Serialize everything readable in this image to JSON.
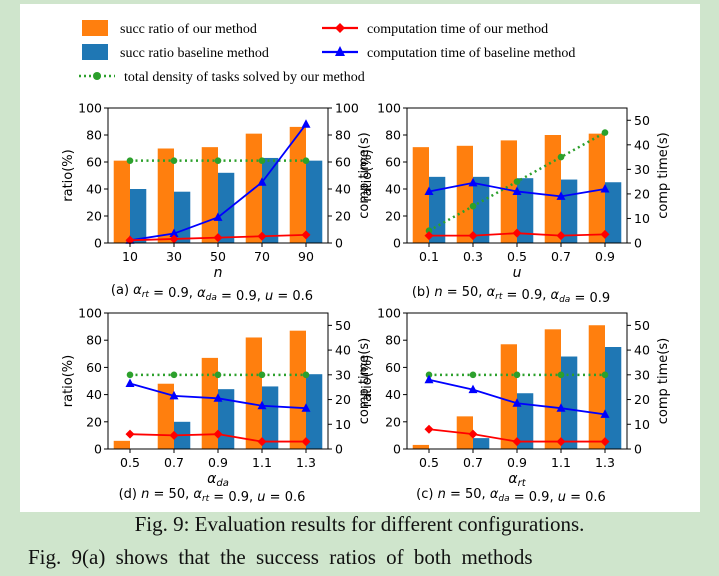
{
  "legend": {
    "entries": [
      {
        "label": "succ ratio of our method",
        "kind": "bar",
        "color": "#ff7f0e"
      },
      {
        "label": "succ ratio baseline method",
        "kind": "bar",
        "color": "#1f77b4"
      },
      {
        "label": "computation time of our method",
        "kind": "line",
        "marker": "diamond",
        "color": "#ff0000"
      },
      {
        "label": "computation time of baseline method",
        "kind": "line",
        "marker": "triangle",
        "color": "#0000ff"
      },
      {
        "label": "total density of tasks solved by our method",
        "kind": "dotted-line",
        "marker": "circle",
        "color": "#2ca02c"
      }
    ]
  },
  "chart_data": [
    {
      "type": "bar",
      "categories": [
        "10",
        "30",
        "50",
        "70",
        "90"
      ],
      "xlabel": "n",
      "ylabel": "ratio(%)",
      "y2label": "comp time(s)",
      "ylim": [
        0,
        100
      ],
      "y2lim": [
        0,
        100
      ],
      "y2ticks": [
        0,
        20,
        40,
        60,
        80,
        100
      ],
      "subcaption": "(a) α_rt = 0.9, α_da = 0.9, u = 0.6",
      "series": [
        {
          "name": "succ ratio of our method",
          "values": [
            61,
            70,
            71,
            81,
            86
          ]
        },
        {
          "name": "succ ratio baseline method",
          "values": [
            40,
            38,
            52,
            63,
            61
          ]
        },
        {
          "name": "computation time of our method",
          "axis": "right",
          "values": [
            2,
            3,
            4,
            5,
            6
          ]
        },
        {
          "name": "computation time of baseline method",
          "axis": "right",
          "values": [
            2,
            7,
            19,
            45,
            88
          ]
        },
        {
          "name": "total density of tasks solved by our method",
          "axis": "left",
          "values": [
            61,
            61,
            61,
            61,
            61
          ]
        }
      ]
    },
    {
      "type": "bar",
      "categories": [
        "0.1",
        "0.3",
        "0.5",
        "0.7",
        "0.9"
      ],
      "xlabel": "u",
      "ylabel": "ratio(%)",
      "y2label": "comp time(s)",
      "ylim": [
        0,
        100
      ],
      "y2lim": [
        0,
        55
      ],
      "y2ticks": [
        0,
        10,
        20,
        30,
        40,
        50
      ],
      "subcaption": "(b) n = 50, α_rt = 0.9, α_da = 0.9",
      "series": [
        {
          "name": "succ ratio of our method",
          "values": [
            71,
            72,
            76,
            80,
            81
          ]
        },
        {
          "name": "succ ratio baseline method",
          "values": [
            49,
            49,
            48,
            47,
            45
          ]
        },
        {
          "name": "computation time of our method",
          "axis": "right",
          "values": [
            3,
            3,
            4,
            3,
            3.5
          ]
        },
        {
          "name": "computation time of baseline method",
          "axis": "right",
          "values": [
            21,
            24.5,
            21,
            19,
            22
          ]
        },
        {
          "name": "total density of tasks solved by our method",
          "axis": "right",
          "values": [
            5,
            15,
            25,
            35,
            45
          ]
        }
      ]
    },
    {
      "type": "bar",
      "categories": [
        "0.5",
        "0.7",
        "0.9",
        "1.1",
        "1.3"
      ],
      "xlabel": "α_da",
      "ylabel": "ratio(%)",
      "y2label": "comp time(s)",
      "ylim": [
        0,
        100
      ],
      "y2lim": [
        0,
        55
      ],
      "y2ticks": [
        0,
        10,
        20,
        30,
        40,
        50
      ],
      "subcaption": "(d) n = 50, α_rt = 0.9, u = 0.6",
      "series": [
        {
          "name": "succ ratio of our method",
          "values": [
            6,
            48,
            67,
            82,
            87
          ]
        },
        {
          "name": "succ ratio baseline method",
          "values": [
            0,
            20,
            44,
            46,
            55
          ]
        },
        {
          "name": "computation time of our method",
          "axis": "right",
          "values": [
            6,
            5.5,
            6,
            3,
            3
          ]
        },
        {
          "name": "computation time of baseline method",
          "axis": "right",
          "values": [
            26.5,
            21.5,
            20.5,
            17.5,
            16.5
          ]
        },
        {
          "name": "total density of tasks solved by our method",
          "axis": "right",
          "values": [
            30,
            30,
            30,
            30,
            30
          ]
        }
      ]
    },
    {
      "type": "bar",
      "categories": [
        "0.5",
        "0.7",
        "0.9",
        "1.1",
        "1.3"
      ],
      "xlabel": "α_rt",
      "ylabel": "ratio(%)",
      "y2label": "comp time(s)",
      "ylim": [
        0,
        100
      ],
      "y2lim": [
        0,
        55
      ],
      "y2ticks": [
        0,
        10,
        20,
        30,
        40,
        50
      ],
      "subcaption": "(c) n = 50, α_da = 0.9, u = 0.6",
      "series": [
        {
          "name": "succ ratio of our method",
          "values": [
            3,
            24,
            77,
            88,
            91
          ]
        },
        {
          "name": "succ ratio baseline method",
          "values": [
            0,
            8,
            41,
            68,
            75
          ]
        },
        {
          "name": "computation time of our method",
          "axis": "right",
          "values": [
            8,
            6,
            3,
            3,
            3
          ]
        },
        {
          "name": "computation time of baseline method",
          "axis": "right",
          "values": [
            28,
            24,
            18.5,
            16.5,
            14
          ]
        },
        {
          "name": "total density of tasks solved by our method",
          "axis": "right",
          "values": [
            30,
            30,
            30,
            30,
            30
          ]
        }
      ]
    }
  ],
  "caption": "Fig. 9: Evaluation results for different configurations.",
  "body_text": "Fig. 9(a) shows that the success ratios of both methods"
}
